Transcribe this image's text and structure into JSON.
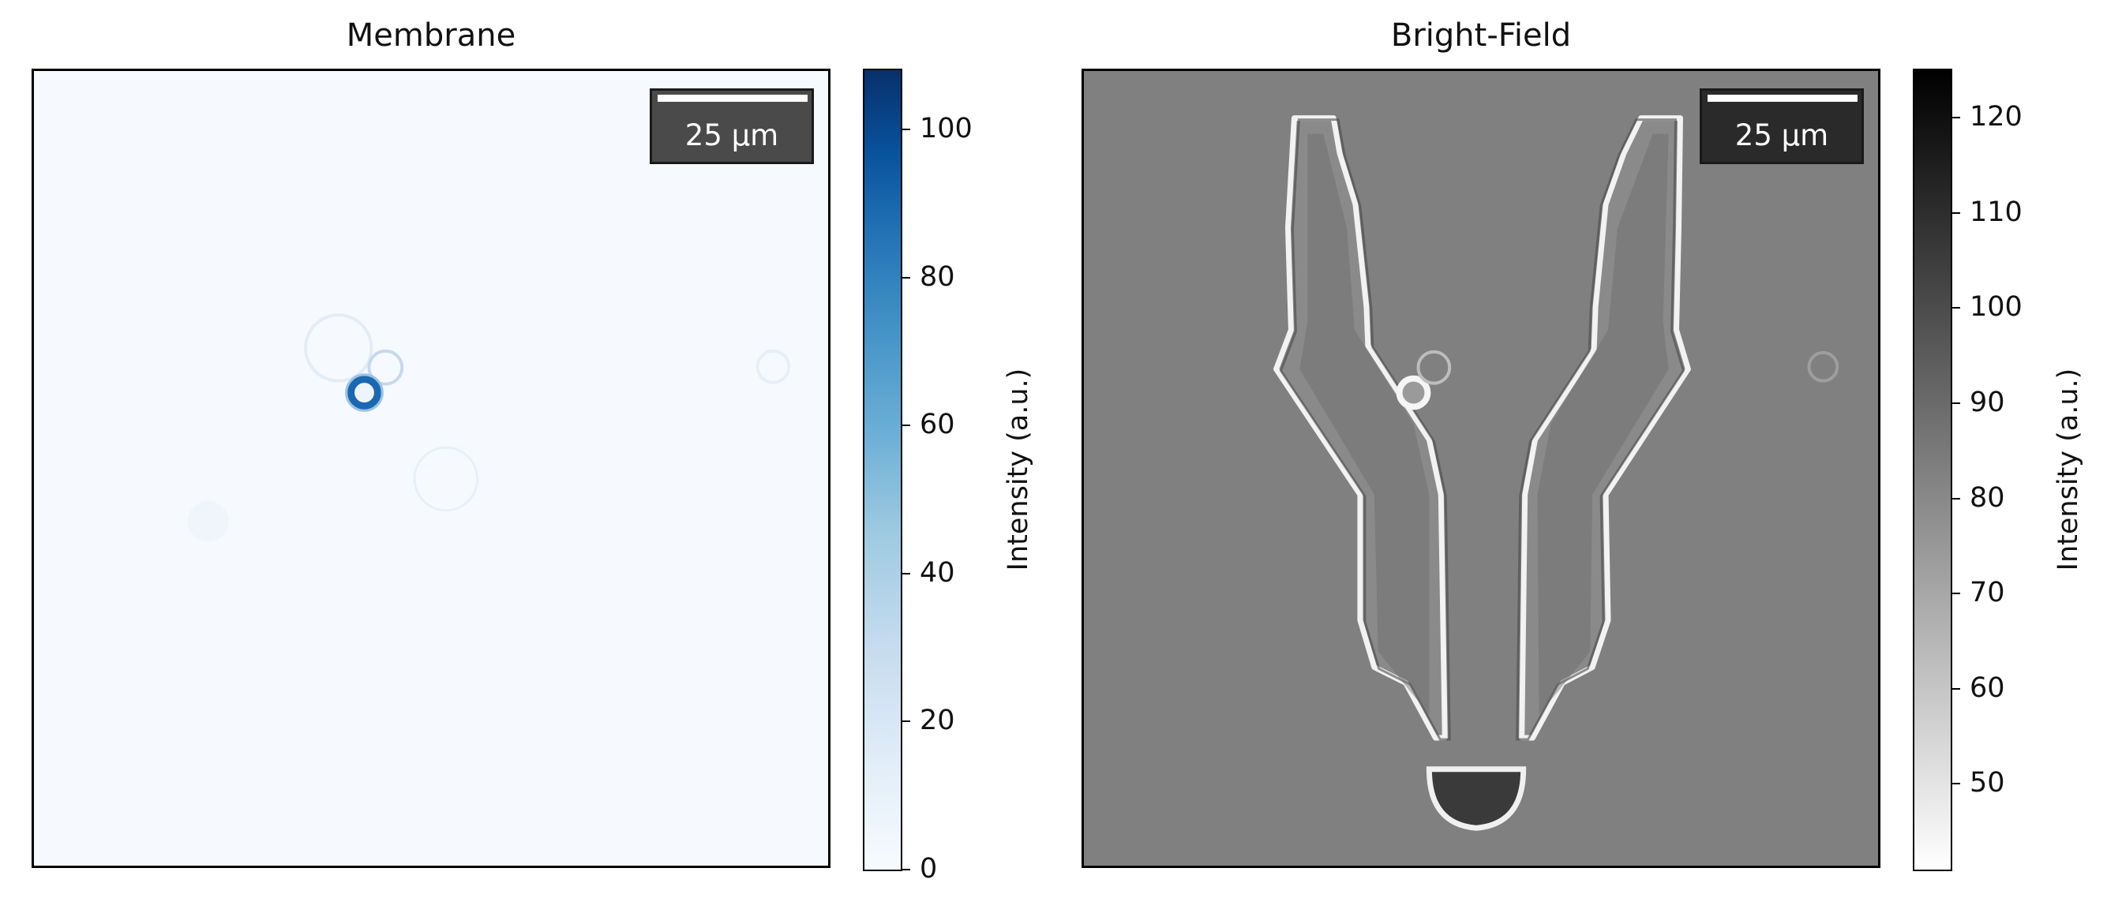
{
  "panels": [
    {
      "title": "Membrane",
      "colorbar": {
        "label": "Intensity (a.u.)",
        "ticks": [
          "0",
          "20",
          "40",
          "60",
          "80",
          "100"
        ],
        "range": [
          0,
          108
        ],
        "colormap": "blues",
        "colors": [
          "#f7fbff",
          "#08306b"
        ]
      },
      "scale_bar": {
        "label": "25 µm"
      }
    },
    {
      "title": "Bright-Field",
      "colorbar": {
        "label": "Intensity (a.u.)",
        "ticks": [
          "50",
          "60",
          "70",
          "80",
          "90",
          "100",
          "110",
          "120"
        ],
        "range": [
          41,
          125
        ],
        "colormap": "grays",
        "colors": [
          "#ffffff",
          "#000000"
        ]
      },
      "scale_bar": {
        "label": "25 µm"
      }
    }
  ]
}
